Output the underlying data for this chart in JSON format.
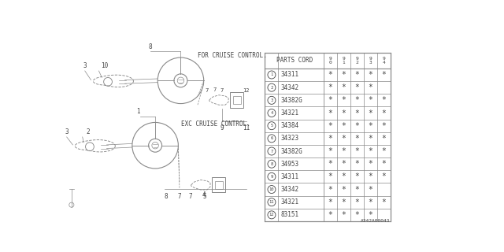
{
  "part_number_label": "A342A00043",
  "years": [
    "9\n0",
    "9\n1",
    "9\n2",
    "9\n3",
    "9\n4"
  ],
  "rows": [
    {
      "num": 1,
      "part": "34311",
      "marks": [
        1,
        1,
        1,
        1,
        1
      ]
    },
    {
      "num": 2,
      "part": "34342",
      "marks": [
        1,
        1,
        1,
        1,
        0
      ]
    },
    {
      "num": 3,
      "part": "34382G",
      "marks": [
        1,
        1,
        1,
        1,
        1
      ]
    },
    {
      "num": 4,
      "part": "34321",
      "marks": [
        1,
        1,
        1,
        1,
        1
      ]
    },
    {
      "num": 5,
      "part": "34384",
      "marks": [
        1,
        1,
        1,
        1,
        1
      ]
    },
    {
      "num": 6,
      "part": "34323",
      "marks": [
        1,
        1,
        1,
        1,
        1
      ]
    },
    {
      "num": 7,
      "part": "34382G",
      "marks": [
        1,
        1,
        1,
        1,
        1
      ]
    },
    {
      "num": 8,
      "part": "34953",
      "marks": [
        1,
        1,
        1,
        1,
        1
      ]
    },
    {
      "num": 9,
      "part": "34311",
      "marks": [
        1,
        1,
        1,
        1,
        1
      ]
    },
    {
      "num": 10,
      "part": "34342",
      "marks": [
        1,
        1,
        1,
        1,
        0
      ]
    },
    {
      "num": 11,
      "part": "34321",
      "marks": [
        1,
        1,
        1,
        1,
        1
      ]
    },
    {
      "num": 12,
      "part": "83151",
      "marks": [
        1,
        1,
        1,
        1,
        0
      ]
    }
  ],
  "label_for_cruise": "FOR CRUISE CONTROL.",
  "label_exc_cruise": "EXC CRUISE CONTROL.",
  "bg_color": "#ffffff",
  "line_color": "#888888",
  "text_color": "#444444",
  "table_bg": "#ffffff",
  "table_line_color": "#888888"
}
